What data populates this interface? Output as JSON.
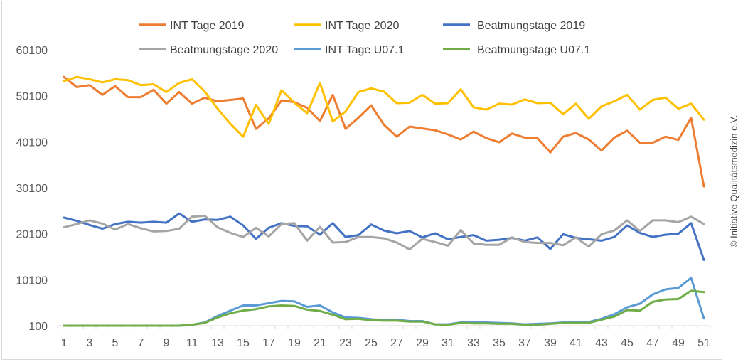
{
  "chart_data": {
    "type": "line",
    "title": "",
    "xlabel": "",
    "ylabel": "",
    "x": [
      1,
      2,
      3,
      4,
      5,
      6,
      7,
      8,
      9,
      10,
      11,
      12,
      13,
      14,
      15,
      16,
      17,
      18,
      19,
      20,
      21,
      22,
      23,
      24,
      25,
      26,
      27,
      28,
      29,
      30,
      31,
      32,
      33,
      34,
      35,
      36,
      37,
      38,
      39,
      40,
      41,
      42,
      43,
      44,
      45,
      46,
      47,
      48,
      49,
      50,
      51
    ],
    "x_tick_labels": [
      "1",
      "3",
      "5",
      "7",
      "9",
      "11",
      "13",
      "15",
      "17",
      "19",
      "21",
      "23",
      "25",
      "27",
      "29",
      "31",
      "33",
      "35",
      "37",
      "39",
      "41",
      "43",
      "45",
      "47",
      "49",
      "51"
    ],
    "y_tick_labels": [
      "100",
      "10100",
      "20100",
      "30100",
      "40100",
      "50100",
      "60100"
    ],
    "ylim": [
      100,
      60100
    ],
    "grid": false,
    "legend_position": "top",
    "series": [
      {
        "name": "INT Tage 2019",
        "color": "#ED7D31",
        "values": [
          54200,
          52000,
          52400,
          50300,
          52200,
          49800,
          49800,
          51400,
          48400,
          50900,
          48400,
          49700,
          48900,
          49200,
          49500,
          42900,
          45200,
          49100,
          48700,
          47500,
          44600,
          50300,
          42900,
          45300,
          48000,
          43800,
          41200,
          43400,
          43000,
          42600,
          41700,
          40600,
          42300,
          40900,
          40000,
          41900,
          41000,
          40900,
          37800,
          41200,
          42000,
          40600,
          38200,
          41000,
          42500,
          39900,
          39900,
          41200,
          40500,
          45300,
          30400
        ]
      },
      {
        "name": "INT Tage 2020",
        "color": "#FFC000",
        "values": [
          53300,
          54200,
          53700,
          53000,
          53700,
          53500,
          52400,
          52600,
          50900,
          52900,
          53700,
          51000,
          47300,
          44000,
          41200,
          48100,
          44000,
          51300,
          48600,
          46300,
          52900,
          44500,
          46700,
          50900,
          51700,
          51000,
          48500,
          48600,
          50300,
          48400,
          48500,
          51500,
          47600,
          47100,
          48400,
          48200,
          49300,
          48500,
          48600,
          46100,
          48400,
          45100,
          47800,
          48900,
          50300,
          47100,
          49200,
          49700,
          47300,
          48400,
          44900
        ]
      },
      {
        "name": "Beatmungstage 2019",
        "color": "#4472C4",
        "values": [
          23600,
          22900,
          22000,
          21200,
          22200,
          22700,
          22500,
          22700,
          22500,
          24500,
          22700,
          23200,
          23100,
          23800,
          21900,
          19000,
          21400,
          22400,
          21800,
          21700,
          19900,
          22400,
          19400,
          19800,
          22100,
          20800,
          20200,
          20700,
          19300,
          20200,
          18900,
          19400,
          19800,
          18600,
          18800,
          19200,
          18600,
          19300,
          16800,
          20000,
          19200,
          18900,
          18600,
          19400,
          21900,
          20300,
          19400,
          19900,
          20100,
          22400,
          14400
        ]
      },
      {
        "name": "Beatmungstage 2020",
        "color": "#A5A5A5",
        "values": [
          21500,
          22200,
          23000,
          22300,
          21000,
          22200,
          21300,
          20600,
          20700,
          21200,
          23800,
          24000,
          21500,
          20300,
          19400,
          21400,
          19500,
          22200,
          22400,
          18600,
          21600,
          18200,
          18300,
          19400,
          19400,
          19100,
          18200,
          16700,
          19000,
          18300,
          17500,
          20900,
          18000,
          17700,
          17700,
          19300,
          18300,
          18100,
          18100,
          17600,
          19300,
          17300,
          20000,
          20800,
          23000,
          20700,
          23000,
          23000,
          22600,
          23800,
          22200
        ]
      },
      {
        "name": "INT Tage U07.1",
        "color": "#5B9BD5",
        "values": [
          100,
          100,
          100,
          100,
          100,
          100,
          100,
          100,
          100,
          100,
          300,
          800,
          2200,
          3400,
          4500,
          4500,
          5000,
          5500,
          5400,
          4200,
          4500,
          3000,
          1900,
          1800,
          1500,
          1300,
          1400,
          1100,
          1100,
          400,
          400,
          800,
          800,
          800,
          700,
          600,
          400,
          500,
          600,
          800,
          800,
          900,
          1600,
          2600,
          4100,
          4900,
          6900,
          8000,
          8300,
          10500,
          1700
        ]
      },
      {
        "name": "Beatmungstage U07.1",
        "color": "#70AD47",
        "values": [
          100,
          100,
          100,
          100,
          100,
          100,
          100,
          100,
          100,
          100,
          300,
          700,
          1900,
          2800,
          3400,
          3700,
          4300,
          4500,
          4400,
          3600,
          3300,
          2500,
          1500,
          1600,
          1300,
          1200,
          1200,
          1000,
          1000,
          400,
          300,
          700,
          600,
          600,
          500,
          500,
          300,
          300,
          500,
          700,
          700,
          700,
          1400,
          2100,
          3500,
          3400,
          5300,
          5800,
          5900,
          7700,
          7400
        ]
      }
    ]
  },
  "credit": "© Initiative Qualitätsmedizin e.V."
}
